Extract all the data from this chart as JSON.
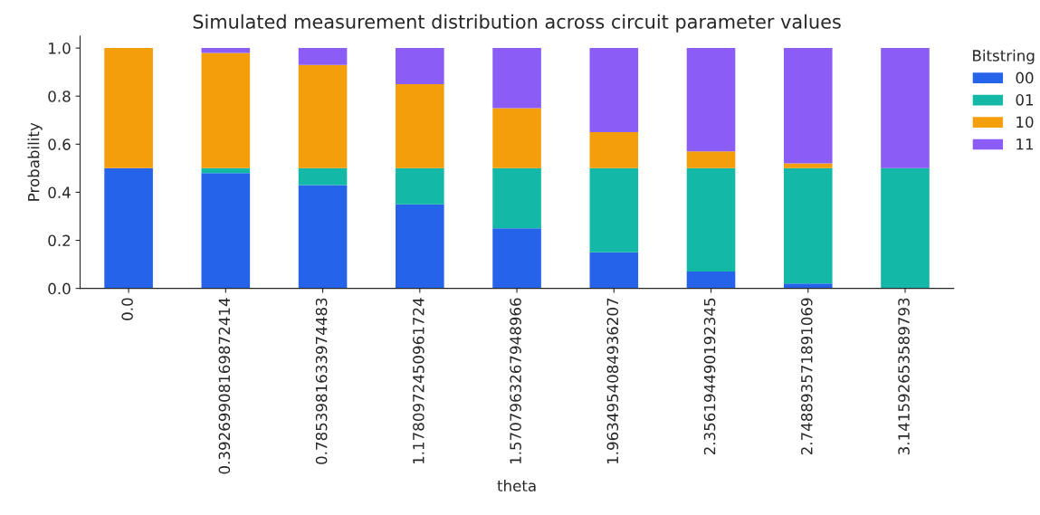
{
  "chart_data": {
    "type": "bar",
    "stacked": true,
    "title": "Simulated measurement distribution across circuit parameter values",
    "xlabel": "theta",
    "ylabel": "Probability",
    "legend_title": "Bitstring",
    "legend": "top right",
    "categories": [
      "0.0",
      "0.39269908169872414",
      "0.7853981633974483",
      "1.1780972450961724",
      "1.5707963267948966",
      "1.9634954084936207",
      "2.356194490192345",
      "2.748893571891069",
      "3.141592653589793"
    ],
    "series": [
      {
        "name": "00",
        "color": "#2563eb",
        "values": [
          0.5,
          0.48,
          0.43,
          0.35,
          0.25,
          0.15,
          0.07,
          0.02,
          0
        ]
      },
      {
        "name": "01",
        "color": "#14b8a6",
        "values": [
          0,
          0.02,
          0.07,
          0.15,
          0.25,
          0.35,
          0.43,
          0.48,
          0.5
        ]
      },
      {
        "name": "10",
        "color": "#f59e0b",
        "values": [
          0.5,
          0.48,
          0.43,
          0.35,
          0.25,
          0.15,
          0.07,
          0.02,
          0
        ]
      },
      {
        "name": "11",
        "color": "#8b5cf6",
        "values": [
          0,
          0.02,
          0.07,
          0.15,
          0.25,
          0.35,
          0.43,
          0.48,
          0.5
        ]
      }
    ],
    "ylim": [
      0,
      1.05
    ],
    "yticks": [
      {
        "value": 0,
        "label": "0.0"
      },
      0.2,
      0.4,
      0.6,
      0.8,
      {
        "value": 1,
        "label": "1.0"
      }
    ],
    "grid": false
  }
}
